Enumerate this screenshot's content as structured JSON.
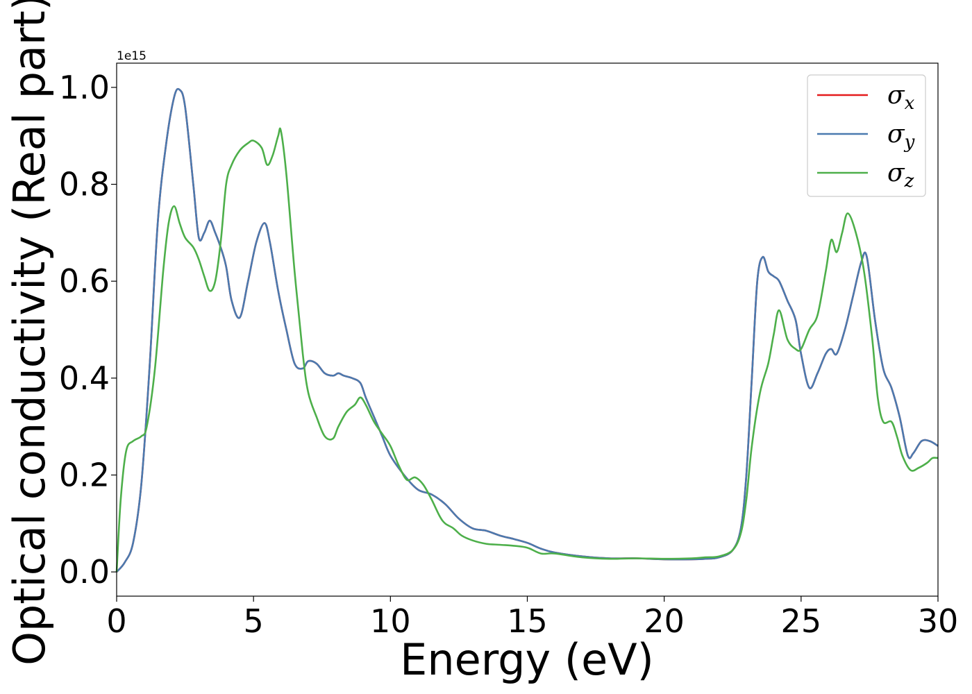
{
  "chart_data": {
    "type": "line",
    "xlabel": "Energy (eV)",
    "ylabel": "Optical conductivity (Real part)",
    "y_offset_text": "1e15",
    "xlim": [
      0,
      30
    ],
    "ylim": [
      -0.05,
      1.05
    ],
    "x_ticks": [
      0,
      5,
      10,
      15,
      20,
      25,
      30
    ],
    "x_tick_labels": [
      "0",
      "5",
      "10",
      "15",
      "20",
      "25",
      "30"
    ],
    "y_ticks": [
      0.0,
      0.2,
      0.4,
      0.6,
      0.8,
      1.0
    ],
    "y_tick_labels": [
      "0.0",
      "0.2",
      "0.4",
      "0.6",
      "0.8",
      "1.0"
    ],
    "grid": false,
    "legend_position": "top-right",
    "series": [
      {
        "name": "σ",
        "subscript": "x",
        "color": "#e41a1c",
        "x": [
          0,
          0.3,
          0.6,
          0.9,
          1.2,
          1.5,
          1.8,
          2.1,
          2.3,
          2.5,
          2.8,
          3.0,
          3.2,
          3.4,
          3.6,
          3.8,
          4.0,
          4.2,
          4.5,
          4.8,
          5.1,
          5.4,
          5.6,
          5.9,
          6.2,
          6.5,
          6.8,
          7.0,
          7.3,
          7.6,
          7.9,
          8.1,
          8.3,
          8.6,
          8.9,
          9.1,
          9.4,
          9.7,
          10.0,
          10.5,
          11.0,
          11.5,
          12.0,
          12.5,
          13.0,
          13.5,
          14.0,
          14.5,
          15.0,
          15.5,
          16.0,
          17.0,
          18.0,
          19.0,
          20.0,
          21.0,
          21.5,
          22.0,
          22.5,
          22.8,
          23.0,
          23.2,
          23.4,
          23.6,
          23.8,
          24.0,
          24.2,
          24.5,
          24.8,
          25.0,
          25.3,
          25.6,
          25.9,
          26.1,
          26.3,
          26.6,
          26.9,
          27.2,
          27.4,
          27.7,
          28.0,
          28.3,
          28.6,
          28.9,
          29.1,
          29.4,
          29.7,
          30.0
        ],
        "y": [
          0,
          0.02,
          0.06,
          0.18,
          0.42,
          0.72,
          0.88,
          0.98,
          0.995,
          0.96,
          0.8,
          0.69,
          0.7,
          0.725,
          0.7,
          0.67,
          0.63,
          0.56,
          0.525,
          0.6,
          0.68,
          0.72,
          0.68,
          0.58,
          0.5,
          0.43,
          0.42,
          0.435,
          0.43,
          0.41,
          0.405,
          0.41,
          0.405,
          0.4,
          0.39,
          0.36,
          0.32,
          0.28,
          0.24,
          0.2,
          0.17,
          0.16,
          0.14,
          0.11,
          0.09,
          0.085,
          0.075,
          0.068,
          0.06,
          0.048,
          0.04,
          0.032,
          0.028,
          0.028,
          0.026,
          0.026,
          0.027,
          0.03,
          0.045,
          0.09,
          0.2,
          0.4,
          0.6,
          0.65,
          0.62,
          0.61,
          0.6,
          0.56,
          0.52,
          0.45,
          0.38,
          0.41,
          0.45,
          0.46,
          0.45,
          0.5,
          0.57,
          0.64,
          0.65,
          0.52,
          0.42,
          0.38,
          0.32,
          0.24,
          0.245,
          0.27,
          0.27,
          0.26
        ]
      },
      {
        "name": "σ",
        "subscript": "y",
        "color": "#4a7aaf",
        "x": [
          0,
          0.3,
          0.6,
          0.9,
          1.2,
          1.5,
          1.8,
          2.1,
          2.3,
          2.5,
          2.8,
          3.0,
          3.2,
          3.4,
          3.6,
          3.8,
          4.0,
          4.2,
          4.5,
          4.8,
          5.1,
          5.4,
          5.6,
          5.9,
          6.2,
          6.5,
          6.8,
          7.0,
          7.3,
          7.6,
          7.9,
          8.1,
          8.3,
          8.6,
          8.9,
          9.1,
          9.4,
          9.7,
          10.0,
          10.5,
          11.0,
          11.5,
          12.0,
          12.5,
          13.0,
          13.5,
          14.0,
          14.5,
          15.0,
          15.5,
          16.0,
          17.0,
          18.0,
          19.0,
          20.0,
          21.0,
          21.5,
          22.0,
          22.5,
          22.8,
          23.0,
          23.2,
          23.4,
          23.6,
          23.8,
          24.0,
          24.2,
          24.5,
          24.8,
          25.0,
          25.3,
          25.6,
          25.9,
          26.1,
          26.3,
          26.6,
          26.9,
          27.2,
          27.4,
          27.7,
          28.0,
          28.3,
          28.6,
          28.9,
          29.1,
          29.4,
          29.7,
          30.0
        ],
        "y": [
          0,
          0.02,
          0.06,
          0.18,
          0.42,
          0.72,
          0.88,
          0.98,
          0.995,
          0.96,
          0.8,
          0.69,
          0.7,
          0.725,
          0.7,
          0.67,
          0.63,
          0.56,
          0.525,
          0.6,
          0.68,
          0.72,
          0.68,
          0.58,
          0.5,
          0.43,
          0.42,
          0.435,
          0.43,
          0.41,
          0.405,
          0.41,
          0.405,
          0.4,
          0.39,
          0.36,
          0.32,
          0.28,
          0.24,
          0.2,
          0.17,
          0.16,
          0.14,
          0.11,
          0.09,
          0.085,
          0.075,
          0.068,
          0.06,
          0.048,
          0.04,
          0.032,
          0.028,
          0.028,
          0.026,
          0.026,
          0.027,
          0.03,
          0.045,
          0.09,
          0.2,
          0.4,
          0.6,
          0.65,
          0.62,
          0.61,
          0.6,
          0.56,
          0.52,
          0.45,
          0.38,
          0.41,
          0.45,
          0.46,
          0.45,
          0.5,
          0.57,
          0.64,
          0.65,
          0.52,
          0.42,
          0.38,
          0.32,
          0.24,
          0.245,
          0.27,
          0.27,
          0.26
        ]
      },
      {
        "name": "σ",
        "subscript": "z",
        "color": "#4daf4a",
        "x": [
          0,
          0.15,
          0.35,
          0.6,
          0.9,
          1.1,
          1.4,
          1.7,
          1.9,
          2.1,
          2.3,
          2.5,
          2.8,
          3.0,
          3.2,
          3.4,
          3.6,
          3.8,
          4.0,
          4.2,
          4.5,
          4.8,
          5.0,
          5.3,
          5.5,
          5.7,
          5.9,
          6.0,
          6.2,
          6.5,
          6.8,
          7.0,
          7.3,
          7.6,
          7.9,
          8.1,
          8.4,
          8.7,
          8.9,
          9.1,
          9.4,
          9.7,
          10.0,
          10.3,
          10.6,
          10.9,
          11.2,
          11.5,
          11.8,
          12.0,
          12.3,
          12.6,
          13.0,
          13.5,
          14.0,
          14.5,
          15.0,
          15.5,
          16.0,
          17.0,
          18.0,
          19.0,
          20.0,
          21.0,
          21.5,
          22.0,
          22.5,
          22.8,
          23.0,
          23.2,
          23.5,
          23.8,
          24.0,
          24.2,
          24.5,
          24.8,
          25.0,
          25.3,
          25.6,
          25.9,
          26.1,
          26.3,
          26.5,
          26.7,
          27.0,
          27.3,
          27.6,
          27.8,
          28.0,
          28.3,
          28.5,
          28.7,
          29.0,
          29.3,
          29.6,
          29.8,
          30.0
        ],
        "y": [
          0,
          0.15,
          0.25,
          0.27,
          0.28,
          0.3,
          0.42,
          0.62,
          0.72,
          0.755,
          0.72,
          0.69,
          0.67,
          0.645,
          0.61,
          0.58,
          0.6,
          0.68,
          0.8,
          0.84,
          0.87,
          0.885,
          0.89,
          0.875,
          0.84,
          0.86,
          0.9,
          0.91,
          0.82,
          0.62,
          0.45,
          0.37,
          0.32,
          0.28,
          0.275,
          0.3,
          0.33,
          0.345,
          0.36,
          0.345,
          0.31,
          0.285,
          0.26,
          0.22,
          0.19,
          0.195,
          0.18,
          0.15,
          0.115,
          0.1,
          0.09,
          0.075,
          0.065,
          0.058,
          0.056,
          0.054,
          0.05,
          0.038,
          0.038,
          0.03,
          0.027,
          0.028,
          0.027,
          0.028,
          0.03,
          0.032,
          0.045,
          0.08,
          0.15,
          0.26,
          0.37,
          0.43,
          0.49,
          0.54,
          0.48,
          0.46,
          0.46,
          0.5,
          0.53,
          0.62,
          0.685,
          0.66,
          0.7,
          0.74,
          0.7,
          0.62,
          0.48,
          0.36,
          0.31,
          0.31,
          0.28,
          0.24,
          0.21,
          0.215,
          0.225,
          0.235,
          0.235
        ]
      }
    ]
  }
}
